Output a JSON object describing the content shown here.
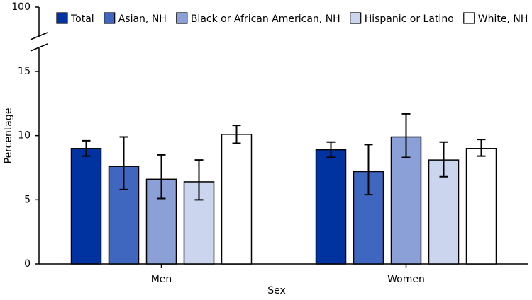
{
  "chart_data": {
    "type": "bar",
    "xlabel": "Sex",
    "ylabel": "Percentage",
    "categories": [
      "Men",
      "Women"
    ],
    "ylim": [
      0,
      100
    ],
    "yticks": [
      0,
      5,
      10,
      15,
      100
    ],
    "axis_break": true,
    "legend": "top",
    "series": [
      {
        "name": "Total",
        "color": "#0033a0",
        "values": [
          9.0,
          8.9
        ],
        "ci": [
          [
            8.4,
            9.6
          ],
          [
            8.3,
            9.5
          ]
        ]
      },
      {
        "name": "Asian, NH",
        "color": "#3f67c0",
        "values": [
          7.6,
          7.2
        ],
        "ci": [
          [
            5.8,
            9.9
          ],
          [
            5.4,
            9.3
          ]
        ]
      },
      {
        "name": "Black or African American, NH",
        "color": "#8aa0d6",
        "values": [
          6.6,
          9.9
        ],
        "ci": [
          [
            5.1,
            8.5
          ],
          [
            8.3,
            11.7
          ]
        ]
      },
      {
        "name": "Hispanic or Latino",
        "color": "#ccd5ee",
        "values": [
          6.4,
          8.1
        ],
        "ci": [
          [
            5.0,
            8.1
          ],
          [
            6.8,
            9.5
          ]
        ]
      },
      {
        "name": "White, NH",
        "color": "#ffffff",
        "values": [
          10.1,
          9.0
        ],
        "ci": [
          [
            9.4,
            10.8
          ],
          [
            8.4,
            9.7
          ]
        ]
      }
    ]
  }
}
